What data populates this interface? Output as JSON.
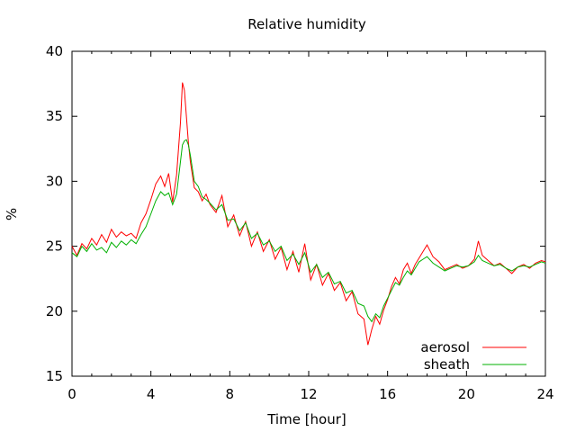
{
  "chart_data": {
    "type": "line",
    "title": "Relative humidity",
    "xlabel": "Time [hour]",
    "ylabel": "%",
    "xlim": [
      0,
      24
    ],
    "ylim": [
      15,
      40
    ],
    "xticks": [
      0,
      4,
      8,
      12,
      16,
      20,
      24
    ],
    "yticks": [
      15,
      20,
      25,
      30,
      35,
      40
    ],
    "grid": false,
    "legend_position": "bottom-right",
    "series": [
      {
        "name": "aerosol",
        "color": "#ff0000",
        "x": [
          0,
          0.25,
          0.5,
          0.75,
          1,
          1.25,
          1.5,
          1.75,
          2,
          2.25,
          2.5,
          2.75,
          3,
          3.25,
          3.5,
          3.75,
          4,
          4.25,
          4.5,
          4.7,
          4.9,
          5.1,
          5.3,
          5.5,
          5.6,
          5.7,
          5.8,
          5.9,
          6,
          6.2,
          6.4,
          6.6,
          6.8,
          7,
          7.3,
          7.6,
          7.9,
          8.2,
          8.5,
          8.8,
          9.1,
          9.4,
          9.7,
          10,
          10.3,
          10.6,
          10.9,
          11.2,
          11.5,
          11.8,
          12.1,
          12.4,
          12.7,
          13,
          13.3,
          13.6,
          13.9,
          14.2,
          14.5,
          14.8,
          15,
          15.2,
          15.4,
          15.6,
          15.8,
          16,
          16.2,
          16.4,
          16.6,
          16.8,
          17,
          17.2,
          17.4,
          17.6,
          17.8,
          18,
          18.3,
          18.6,
          18.9,
          19.2,
          19.5,
          19.8,
          20.1,
          20.4,
          20.6,
          20.8,
          21.1,
          21.4,
          21.7,
          22,
          22.3,
          22.6,
          22.9,
          23.2,
          23.5,
          23.8,
          24
        ],
        "y": [
          25.0,
          24.3,
          25.2,
          24.8,
          25.6,
          25.1,
          25.9,
          25.3,
          26.3,
          25.7,
          26.1,
          25.8,
          26.0,
          25.6,
          26.8,
          27.5,
          28.6,
          29.8,
          30.4,
          29.6,
          30.6,
          28.4,
          30.5,
          34.5,
          37.6,
          37.0,
          35.0,
          33.0,
          31.5,
          29.5,
          29.2,
          28.5,
          29.0,
          28.2,
          27.6,
          28.9,
          26.5,
          27.4,
          25.8,
          26.9,
          25.0,
          26.1,
          24.6,
          25.5,
          24.0,
          24.9,
          23.2,
          24.6,
          23.0,
          25.2,
          22.4,
          23.6,
          22.0,
          22.9,
          21.6,
          22.2,
          20.8,
          21.5,
          19.8,
          19.4,
          17.4,
          18.6,
          19.6,
          19.0,
          20.1,
          20.9,
          21.9,
          22.6,
          22.1,
          23.2,
          23.7,
          22.9,
          23.6,
          24.1,
          24.6,
          25.1,
          24.2,
          23.8,
          23.2,
          23.4,
          23.6,
          23.3,
          23.5,
          24.0,
          25.4,
          24.3,
          23.9,
          23.5,
          23.7,
          23.3,
          22.9,
          23.4,
          23.6,
          23.3,
          23.7,
          23.9,
          23.8
        ]
      },
      {
        "name": "sheath",
        "color": "#00b000",
        "x": [
          0,
          0.25,
          0.5,
          0.75,
          1,
          1.25,
          1.5,
          1.75,
          2,
          2.25,
          2.5,
          2.75,
          3,
          3.25,
          3.5,
          3.75,
          4,
          4.25,
          4.5,
          4.7,
          4.9,
          5.1,
          5.3,
          5.5,
          5.6,
          5.7,
          5.8,
          5.9,
          6,
          6.2,
          6.4,
          6.6,
          6.8,
          7,
          7.3,
          7.6,
          7.9,
          8.2,
          8.5,
          8.8,
          9.1,
          9.4,
          9.7,
          10,
          10.3,
          10.6,
          10.9,
          11.2,
          11.5,
          11.8,
          12.1,
          12.4,
          12.7,
          13,
          13.3,
          13.6,
          13.9,
          14.2,
          14.5,
          14.8,
          15,
          15.2,
          15.4,
          15.6,
          15.8,
          16,
          16.2,
          16.4,
          16.6,
          16.8,
          17,
          17.2,
          17.4,
          17.6,
          17.8,
          18,
          18.3,
          18.6,
          18.9,
          19.2,
          19.5,
          19.8,
          20.1,
          20.4,
          20.6,
          20.8,
          21.1,
          21.4,
          21.7,
          22,
          22.3,
          22.6,
          22.9,
          23.2,
          23.5,
          23.8,
          24
        ],
        "y": [
          24.5,
          24.2,
          25.0,
          24.6,
          25.2,
          24.7,
          24.9,
          24.5,
          25.3,
          24.9,
          25.4,
          25.1,
          25.5,
          25.2,
          25.9,
          26.5,
          27.5,
          28.5,
          29.2,
          28.9,
          29.1,
          28.2,
          29.0,
          31.5,
          32.8,
          33.1,
          33.2,
          32.8,
          32.0,
          30.0,
          29.6,
          28.8,
          28.6,
          28.3,
          27.8,
          28.2,
          27.0,
          27.1,
          26.2,
          26.8,
          25.6,
          26.0,
          25.1,
          25.4,
          24.6,
          25.0,
          23.9,
          24.4,
          23.6,
          24.5,
          23.0,
          23.6,
          22.6,
          23.0,
          22.1,
          22.3,
          21.4,
          21.6,
          20.6,
          20.4,
          19.6,
          19.2,
          19.8,
          19.5,
          20.4,
          21.0,
          21.6,
          22.2,
          22.0,
          22.6,
          23.1,
          22.8,
          23.3,
          23.8,
          24.0,
          24.2,
          23.7,
          23.4,
          23.1,
          23.3,
          23.5,
          23.4,
          23.5,
          23.8,
          24.3,
          23.9,
          23.7,
          23.5,
          23.6,
          23.3,
          23.1,
          23.4,
          23.5,
          23.4,
          23.6,
          23.8,
          23.7
        ]
      }
    ]
  }
}
